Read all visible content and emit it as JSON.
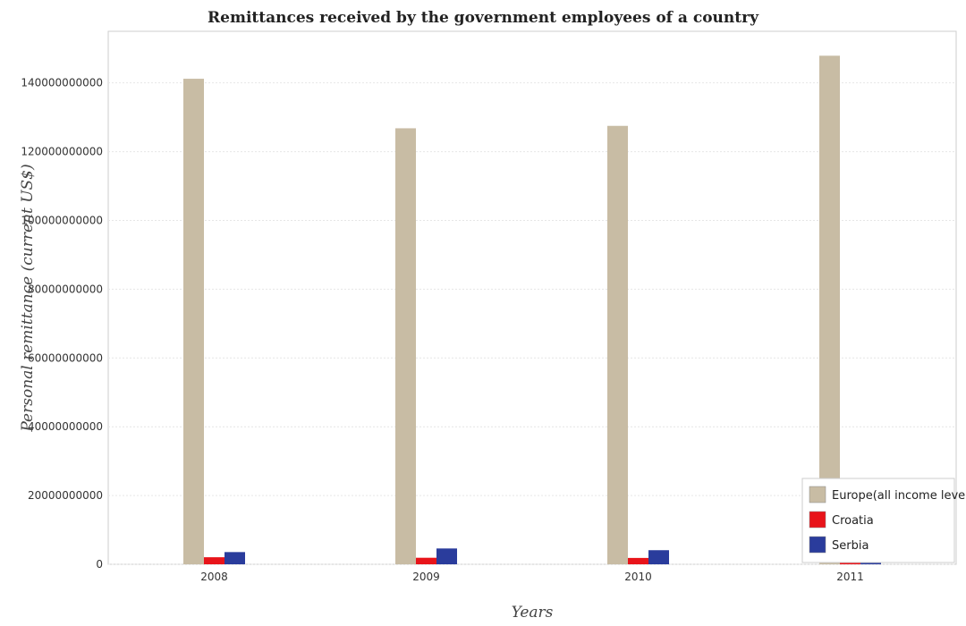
{
  "chart_data": {
    "type": "bar",
    "title": "Remittances received by the government employees of a country",
    "xlabel": "Years",
    "ylabel": "Personal remittance (current US$)",
    "categories": [
      "2008",
      "2009",
      "2010",
      "2011"
    ],
    "series": [
      {
        "name": "Europe(all income levels)",
        "color": "#c8bca4",
        "values": [
          141200000000,
          126800000000,
          127500000000,
          147900000000
        ]
      },
      {
        "name": "Croatia",
        "color": "#e8141a",
        "values": [
          2050000000,
          1900000000,
          1850000000,
          2050000000
        ]
      },
      {
        "name": "Serbia",
        "color": "#2a3c9c",
        "values": [
          3550000000,
          4600000000,
          4100000000,
          3950000000
        ]
      }
    ],
    "y_ticks": [
      0,
      20000000000,
      40000000000,
      60000000000,
      80000000000,
      100000000000,
      120000000000,
      140000000000
    ],
    "y_tick_labels": [
      "0",
      "20000000000",
      "40000000000",
      "60000000000",
      "80000000000",
      "100000000000",
      "120000000000",
      "140000000000"
    ],
    "ylim": [
      0,
      155000000000
    ],
    "grid": true,
    "legend_position": "bottom-right"
  }
}
